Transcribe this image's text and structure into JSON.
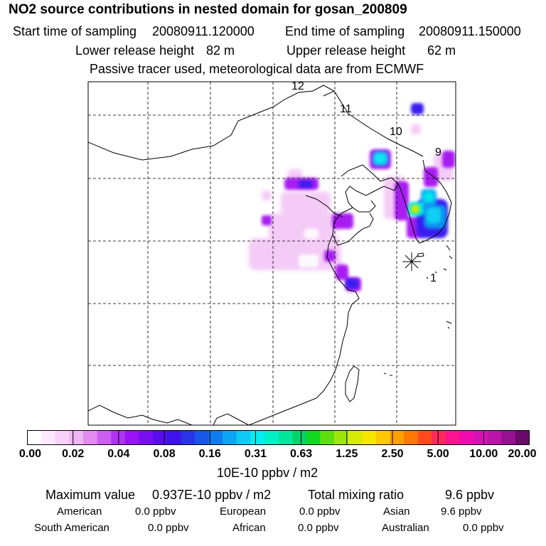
{
  "header": {
    "title": "NO2 source contributions in nested domain for gosan_200809",
    "start_label": "Start time of sampling",
    "start_value": "20080911.120000",
    "end_label": "End time of sampling",
    "end_value": "20080911.150000",
    "lower_label": "Lower release height",
    "lower_value": "82 m",
    "upper_label": "Upper release height",
    "upper_value": "62 m",
    "note": "Passive tracer used, meteorological data are from ECMWF"
  },
  "map": {
    "trajectory_labels": [
      "12",
      "11",
      "10",
      "9",
      "1"
    ],
    "receptor_marker": "asterisk-receptor"
  },
  "colorbar": {
    "ticks": [
      "0.00",
      "0.02",
      "0.04",
      "0.08",
      "0.16",
      "0.31",
      "0.63",
      "1.25",
      "2.50",
      "5.00",
      "10.00",
      "20.00"
    ],
    "unit": "10E-10 ppbv / m2",
    "colors": [
      "#ffffff",
      "#fde9fd",
      "#f7d1f8",
      "#f0b5f4",
      "#e28af0",
      "#cc5ff0",
      "#b133f2",
      "#9a12f5",
      "#7a0ef3",
      "#5a0cf0",
      "#3d12ec",
      "#2a32ea",
      "#1856ea",
      "#0c7cf0",
      "#0aa5f4",
      "#0ccaf5",
      "#06ecf0",
      "#00f0c8",
      "#00e69c",
      "#00d468",
      "#10d820",
      "#5ee010",
      "#9ee60a",
      "#d6ec06",
      "#f6e600",
      "#ffc800",
      "#ffa000",
      "#ff7800",
      "#ff4a1e",
      "#ff2a5a",
      "#ff1290",
      "#f00ab0",
      "#d810b8",
      "#bc14a8",
      "#961090",
      "#6a0a6a"
    ]
  },
  "summary": {
    "max_label": "Maximum value",
    "max_value": "0.937E-10 ppbv / m2",
    "total_label": "Total mixing ratio",
    "total_value": "9.6 ppbv",
    "regions": [
      {
        "name": "American",
        "value": "0.0 ppbv"
      },
      {
        "name": "European",
        "value": "0.0 ppbv"
      },
      {
        "name": "Asian",
        "value": "9.6 ppbv"
      },
      {
        "name": "South American",
        "value": "0.0 ppbv"
      },
      {
        "name": "African",
        "value": "0.0 ppbv"
      },
      {
        "name": "Australian",
        "value": "0.0 ppbv"
      }
    ]
  }
}
